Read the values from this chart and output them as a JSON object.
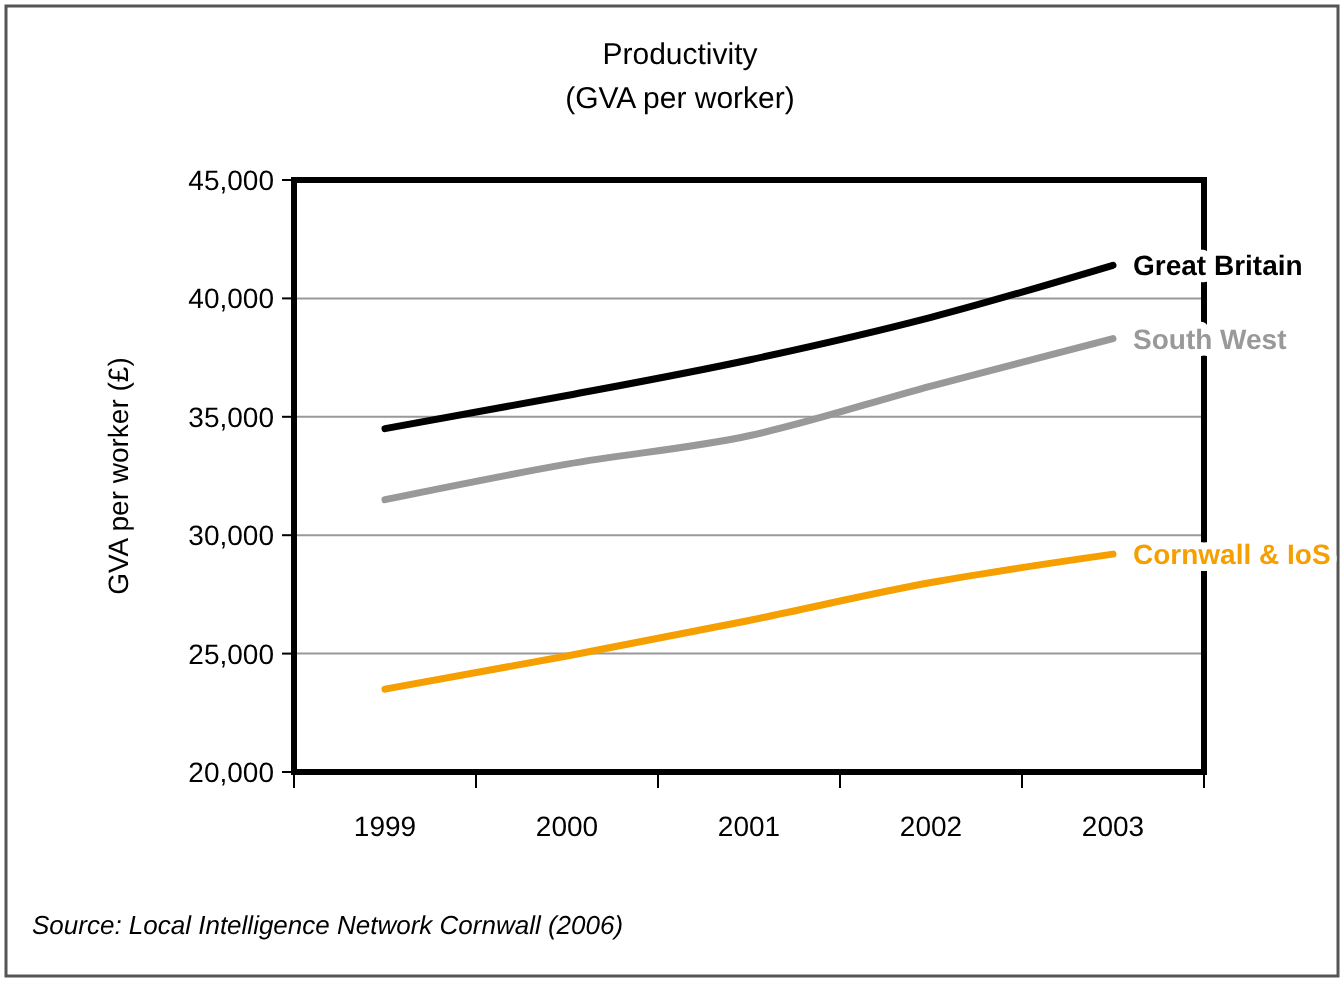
{
  "chart_data": {
    "type": "line",
    "title": "Productivity",
    "subtitle": "(GVA per worker)",
    "ylabel": "GVA per worker (£)",
    "categories": [
      "1999",
      "2000",
      "2001",
      "2002",
      "2003"
    ],
    "series": [
      {
        "name": "Great Britain",
        "color": "#000000",
        "values": [
          34500,
          35900,
          37400,
          39200,
          41400
        ]
      },
      {
        "name": "South West",
        "color": "#999999",
        "values": [
          31500,
          33000,
          34200,
          36300,
          38300
        ]
      },
      {
        "name": "Cornwall & IoS",
        "color": "#f59f00",
        "values": [
          23500,
          24900,
          26400,
          28000,
          29200
        ]
      }
    ],
    "ylim": [
      20000,
      45000
    ],
    "yticks": [
      {
        "value": 20000,
        "label": "20,000"
      },
      {
        "value": 25000,
        "label": "25,000"
      },
      {
        "value": 30000,
        "label": "30,000"
      },
      {
        "value": 35000,
        "label": "35,000"
      },
      {
        "value": 40000,
        "label": "40,000"
      },
      {
        "value": 45000,
        "label": "45,000"
      }
    ],
    "grid": "y",
    "legend": false,
    "marker": "none",
    "line_style": "solid",
    "annotations": [
      "Source: Local Intelligence Network Cornwall (2006)"
    ]
  }
}
